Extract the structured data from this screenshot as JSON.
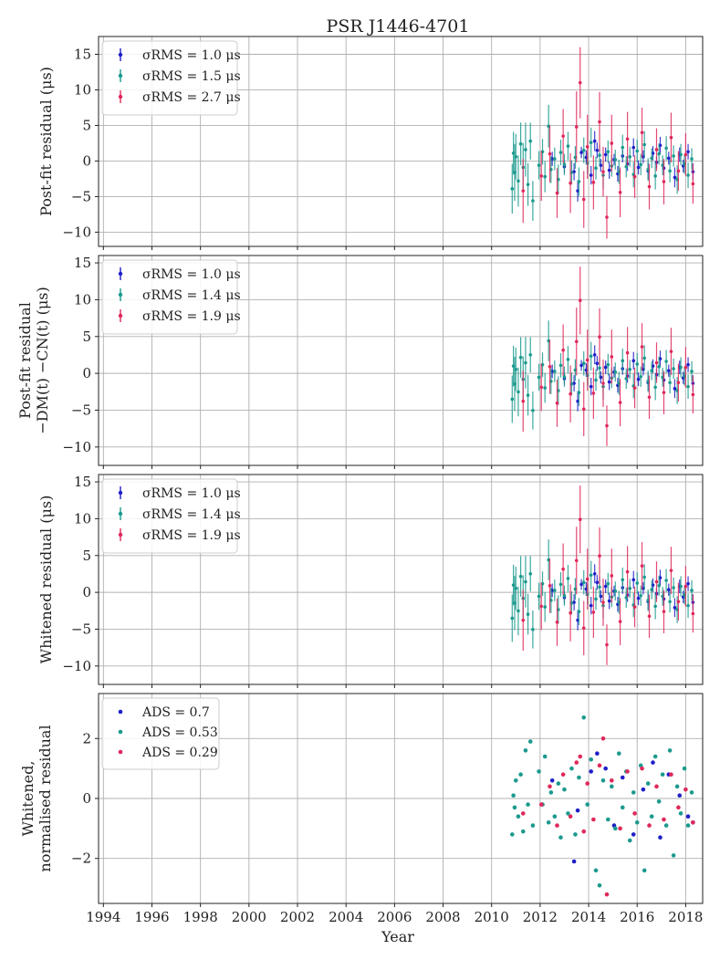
{
  "title": "PSR J1446-4701",
  "colors": {
    "blue": "#1f1fc8",
    "teal": "#1b9a8e",
    "red": "#e0285a"
  },
  "chart_data": [
    {
      "type": "scatter",
      "ylabel": [
        "Post-fit residual (μs)"
      ],
      "xlabel": "",
      "xlim": [
        1993.8,
        2018.7
      ],
      "ylim": [
        -12,
        17.5
      ],
      "yticks": [
        -10,
        -5,
        0,
        5,
        10,
        15
      ],
      "yticklabels": [
        "−10",
        "−5",
        "0",
        "5",
        "10",
        "15"
      ],
      "grid": true,
      "legend_position": "top-left",
      "errorbars": true,
      "series": [
        {
          "name": "σRMS = 1.0 μs",
          "color_key": "blue",
          "marker": "errorbar"
        },
        {
          "name": "σRMS = 1.5 μs",
          "color_key": "teal",
          "marker": "errorbar"
        },
        {
          "name": "σRMS = 2.7 μs",
          "color_key": "red",
          "marker": "errorbar"
        }
      ]
    },
    {
      "type": "scatter",
      "ylabel": [
        "Post-fit residual",
        "−DM(t) −CN(t) (μs)"
      ],
      "xlabel": "",
      "xlim": [
        1993.8,
        2018.7
      ],
      "ylim": [
        -12.5,
        16
      ],
      "yticks": [
        -10,
        -5,
        0,
        5,
        10,
        15
      ],
      "yticklabels": [
        "−10",
        "−5",
        "0",
        "5",
        "10",
        "15"
      ],
      "grid": true,
      "legend_position": "top-left",
      "errorbars": true,
      "series": [
        {
          "name": "σRMS = 1.0 μs",
          "color_key": "blue",
          "marker": "errorbar"
        },
        {
          "name": "σRMS = 1.4 μs",
          "color_key": "teal",
          "marker": "errorbar"
        },
        {
          "name": "σRMS = 1.9 μs",
          "color_key": "red",
          "marker": "errorbar"
        }
      ]
    },
    {
      "type": "scatter",
      "ylabel": [
        "Whitened residual (μs)"
      ],
      "xlabel": "",
      "xlim": [
        1993.8,
        2018.7
      ],
      "ylim": [
        -12.5,
        16
      ],
      "yticks": [
        -10,
        -5,
        0,
        5,
        10,
        15
      ],
      "yticklabels": [
        "−10",
        "−5",
        "0",
        "5",
        "10",
        "15"
      ],
      "grid": true,
      "legend_position": "top-left",
      "errorbars": true,
      "series": [
        {
          "name": "σRMS = 1.0 μs",
          "color_key": "blue",
          "marker": "errorbar"
        },
        {
          "name": "σRMS = 1.4 μs",
          "color_key": "teal",
          "marker": "errorbar"
        },
        {
          "name": "σRMS = 1.9 μs",
          "color_key": "red",
          "marker": "errorbar"
        }
      ]
    },
    {
      "type": "scatter",
      "ylabel": [
        "Whitened,",
        "normalised residual"
      ],
      "xlabel": "Year",
      "xlim": [
        1993.8,
        2018.7
      ],
      "ylim": [
        -3.5,
        3.5
      ],
      "yticks": [
        -2,
        0,
        2
      ],
      "yticklabels": [
        "−2",
        "0",
        "2"
      ],
      "grid": true,
      "legend_position": "top-left",
      "errorbars": false,
      "series": [
        {
          "name": "ADS = 0.7",
          "color_key": "blue",
          "marker": "dot"
        },
        {
          "name": "ADS = 0.53",
          "color_key": "teal",
          "marker": "dot"
        },
        {
          "name": "ADS = 0.29",
          "color_key": "red",
          "marker": "dot"
        }
      ]
    }
  ],
  "x_axis": {
    "ticks": [
      1994,
      1996,
      1998,
      2000,
      2002,
      2004,
      2006,
      2008,
      2010,
      2012,
      2014,
      2016,
      2018
    ],
    "ticklabels": [
      "1994",
      "1996",
      "1998",
      "2000",
      "2002",
      "2004",
      "2006",
      "2008",
      "2010",
      "2012",
      "2014",
      "2016",
      "2018"
    ]
  },
  "observations": {
    "blue": [
      [
        2012.5,
        0.3,
        1.0
      ],
      [
        2013.0,
        -0.8,
        0.9
      ],
      [
        2013.4,
        -1.5,
        1.2
      ],
      [
        2013.55,
        -4.2,
        1.5
      ],
      [
        2013.7,
        1.2,
        0.8
      ],
      [
        2013.9,
        0.5,
        1.0
      ],
      [
        2014.1,
        -2.0,
        1.3
      ],
      [
        2014.25,
        2.8,
        1.4
      ],
      [
        2014.35,
        1.5,
        1.1
      ],
      [
        2014.5,
        -0.6,
        0.9
      ],
      [
        2014.7,
        0.9,
        1.0
      ],
      [
        2014.85,
        -1.3,
        1.2
      ],
      [
        2015.05,
        0.2,
        0.8
      ],
      [
        2015.2,
        -1.8,
        1.1
      ],
      [
        2015.4,
        0.7,
        0.9
      ],
      [
        2015.6,
        -0.4,
        1.0
      ],
      [
        2015.85,
        1.9,
        1.3
      ],
      [
        2016.05,
        -0.9,
        1.0
      ],
      [
        2016.25,
        0.6,
        0.9
      ],
      [
        2016.45,
        -1.4,
        1.2
      ],
      [
        2016.65,
        1.1,
        1.0
      ],
      [
        2016.8,
        -0.2,
        0.8
      ],
      [
        2016.95,
        2.2,
        1.2
      ],
      [
        2017.1,
        -1.0,
        1.0
      ],
      [
        2017.3,
        0.4,
        0.9
      ],
      [
        2017.55,
        -2.3,
        1.4
      ],
      [
        2017.75,
        0.9,
        1.0
      ],
      [
        2017.9,
        -0.7,
        0.9
      ],
      [
        2018.1,
        1.3,
        1.1
      ],
      [
        2018.3,
        -1.5,
        1.2
      ]
    ],
    "teal": [
      [
        2010.85,
        -3.9,
        3.5
      ],
      [
        2010.9,
        1.1,
        3.0
      ],
      [
        2010.95,
        -1.6,
        4.0
      ],
      [
        2011.0,
        0.6,
        3.2
      ],
      [
        2011.1,
        -2.8,
        3.6
      ],
      [
        2011.2,
        2.4,
        3.0
      ],
      [
        2011.3,
        -0.9,
        3.4
      ],
      [
        2011.4,
        1.6,
        3.8
      ],
      [
        2011.5,
        -3.3,
        3.0
      ],
      [
        2011.6,
        2.8,
        2.6
      ],
      [
        2011.7,
        -5.6,
        2.8
      ],
      [
        2011.95,
        -0.6,
        2.0
      ],
      [
        2012.1,
        1.3,
        1.8
      ],
      [
        2012.2,
        -2.2,
        2.2
      ],
      [
        2012.35,
        4.9,
        3.0
      ],
      [
        2012.45,
        -1.2,
        1.9
      ],
      [
        2012.6,
        0.3,
        1.6
      ],
      [
        2012.75,
        -2.6,
        2.1
      ],
      [
        2012.85,
        1.2,
        1.8
      ],
      [
        2013.0,
        -0.5,
        1.5
      ],
      [
        2013.15,
        2.1,
        2.0
      ],
      [
        2013.3,
        -1.6,
        1.7
      ],
      [
        2013.45,
        0.5,
        1.6
      ],
      [
        2013.6,
        -2.9,
        2.0
      ],
      [
        2013.8,
        1.5,
        1.8
      ],
      [
        2013.95,
        -0.3,
        1.5
      ],
      [
        2014.1,
        2.6,
        2.1
      ],
      [
        2014.3,
        -1.0,
        1.6
      ],
      [
        2014.45,
        0.8,
        1.5
      ],
      [
        2014.6,
        -2.0,
        1.9
      ],
      [
        2014.8,
        1.3,
        1.6
      ],
      [
        2014.95,
        -0.7,
        1.5
      ],
      [
        2015.1,
        0.2,
        1.4
      ],
      [
        2015.25,
        -1.5,
        1.7
      ],
      [
        2015.4,
        1.9,
        1.8
      ],
      [
        2015.55,
        -0.8,
        1.5
      ],
      [
        2015.7,
        0.6,
        1.4
      ],
      [
        2015.85,
        -1.9,
        1.8
      ],
      [
        2016.0,
        1.4,
        1.6
      ],
      [
        2016.15,
        -0.5,
        1.5
      ],
      [
        2016.3,
        2.3,
        1.9
      ],
      [
        2016.45,
        -1.2,
        1.6
      ],
      [
        2016.6,
        0.4,
        1.4
      ],
      [
        2016.75,
        -2.1,
        1.9
      ],
      [
        2016.9,
        1.0,
        1.5
      ],
      [
        2017.05,
        -0.6,
        1.4
      ],
      [
        2017.2,
        1.8,
        1.7
      ],
      [
        2017.35,
        -1.4,
        1.6
      ],
      [
        2017.5,
        0.7,
        1.5
      ],
      [
        2017.65,
        -2.6,
        2.0
      ],
      [
        2017.8,
        0.9,
        1.5
      ],
      [
        2017.95,
        -0.4,
        1.4
      ],
      [
        2018.1,
        -2.0,
        1.8
      ],
      [
        2018.25,
        0.3,
        1.5
      ]
    ],
    "red": [
      [
        2011.3,
        -4.2,
        4.5
      ],
      [
        2012.05,
        -2.1,
        3.5
      ],
      [
        2012.4,
        1.0,
        4.0
      ],
      [
        2012.7,
        -4.5,
        3.5
      ],
      [
        2012.95,
        3.5,
        3.8
      ],
      [
        2013.25,
        -3.1,
        4.2
      ],
      [
        2013.5,
        4.8,
        5.0
      ],
      [
        2013.65,
        11.0,
        5.0
      ],
      [
        2013.8,
        -5.4,
        4.0
      ],
      [
        2013.95,
        2.0,
        4.5
      ],
      [
        2014.2,
        -3.0,
        3.8
      ],
      [
        2014.45,
        5.5,
        4.2
      ],
      [
        2014.6,
        -1.5,
        3.5
      ],
      [
        2014.75,
        -7.9,
        3.0
      ],
      [
        2014.95,
        2.5,
        4.0
      ],
      [
        2015.3,
        -4.4,
        3.5
      ],
      [
        2015.6,
        3.1,
        3.8
      ],
      [
        2015.9,
        -2.2,
        3.0
      ],
      [
        2016.2,
        4.0,
        3.5
      ],
      [
        2016.5,
        -3.6,
        3.2
      ],
      [
        2016.8,
        1.6,
        3.0
      ],
      [
        2017.1,
        -2.9,
        3.2
      ],
      [
        2017.4,
        3.3,
        3.5
      ],
      [
        2017.7,
        -1.4,
        2.8
      ],
      [
        2018.0,
        0.9,
        3.0
      ],
      [
        2018.3,
        -3.2,
        2.8
      ]
    ]
  },
  "normalised": {
    "blue": [
      [
        2012.5,
        0.6
      ],
      [
        2013.4,
        -2.1
      ],
      [
        2013.55,
        -0.4
      ],
      [
        2014.1,
        0.9
      ],
      [
        2014.35,
        1.5
      ],
      [
        2014.7,
        1.0
      ],
      [
        2015.05,
        -0.9
      ],
      [
        2015.4,
        0.7
      ],
      [
        2015.85,
        -1.2
      ],
      [
        2016.25,
        0.3
      ],
      [
        2016.65,
        1.2
      ],
      [
        2016.95,
        -1.3
      ],
      [
        2017.3,
        0.8
      ],
      [
        2017.75,
        0.1
      ],
      [
        2018.1,
        -0.6
      ],
      [
        2018.3,
        -0.8
      ]
    ],
    "teal": [
      [
        2010.85,
        -1.2
      ],
      [
        2010.9,
        0.1
      ],
      [
        2010.95,
        -0.3
      ],
      [
        2011.0,
        0.6
      ],
      [
        2011.1,
        -0.6
      ],
      [
        2011.2,
        0.8
      ],
      [
        2011.3,
        -1.1
      ],
      [
        2011.4,
        1.6
      ],
      [
        2011.5,
        -0.2
      ],
      [
        2011.6,
        1.9
      ],
      [
        2011.7,
        -0.9
      ],
      [
        2011.95,
        0.9
      ],
      [
        2012.1,
        -0.2
      ],
      [
        2012.2,
        1.4
      ],
      [
        2012.35,
        -0.8
      ],
      [
        2012.45,
        0.2
      ],
      [
        2012.6,
        -0.6
      ],
      [
        2012.75,
        0.5
      ],
      [
        2012.85,
        -1.3
      ],
      [
        2013.0,
        0.3
      ],
      [
        2013.15,
        -0.5
      ],
      [
        2013.3,
        1.0
      ],
      [
        2013.45,
        -1.2
      ],
      [
        2013.6,
        0.7
      ],
      [
        2013.8,
        2.7
      ],
      [
        2013.95,
        -0.2
      ],
      [
        2014.1,
        1.3
      ],
      [
        2014.3,
        -2.4
      ],
      [
        2014.45,
        -2.9
      ],
      [
        2014.6,
        0.6
      ],
      [
        2014.8,
        -0.7
      ],
      [
        2014.95,
        0.4
      ],
      [
        2015.1,
        -1.0
      ],
      [
        2015.25,
        1.5
      ],
      [
        2015.4,
        -0.3
      ],
      [
        2015.55,
        0.9
      ],
      [
        2015.7,
        -1.4
      ],
      [
        2015.85,
        0.2
      ],
      [
        2016.0,
        -0.8
      ],
      [
        2016.15,
        1.1
      ],
      [
        2016.3,
        -2.4
      ],
      [
        2016.45,
        0.5
      ],
      [
        2016.6,
        -0.6
      ],
      [
        2016.75,
        1.4
      ],
      [
        2016.9,
        -0.1
      ],
      [
        2017.05,
        0.8
      ],
      [
        2017.2,
        -0.9
      ],
      [
        2017.35,
        1.6
      ],
      [
        2017.5,
        -1.9
      ],
      [
        2017.65,
        0.4
      ],
      [
        2017.8,
        -0.5
      ],
      [
        2017.95,
        1.0
      ],
      [
        2018.1,
        -0.9
      ],
      [
        2018.25,
        0.2
      ]
    ],
    "red": [
      [
        2011.3,
        -0.5
      ],
      [
        2012.05,
        -0.2
      ],
      [
        2012.4,
        0.4
      ],
      [
        2012.7,
        -0.9
      ],
      [
        2012.95,
        0.8
      ],
      [
        2013.25,
        -0.6
      ],
      [
        2013.5,
        1.2
      ],
      [
        2013.65,
        1.4
      ],
      [
        2013.8,
        -1.1
      ],
      [
        2013.95,
        0.5
      ],
      [
        2014.2,
        -0.7
      ],
      [
        2014.45,
        1.1
      ],
      [
        2014.6,
        2.0
      ],
      [
        2014.75,
        -3.2
      ],
      [
        2014.95,
        0.6
      ],
      [
        2015.3,
        -1.0
      ],
      [
        2015.6,
        0.9
      ],
      [
        2015.9,
        -0.5
      ],
      [
        2016.2,
        1.0
      ],
      [
        2016.5,
        -0.9
      ],
      [
        2016.8,
        0.4
      ],
      [
        2017.1,
        -0.7
      ],
      [
        2017.4,
        0.8
      ],
      [
        2017.7,
        -0.3
      ],
      [
        2018.0,
        0.3
      ],
      [
        2018.3,
        -0.8
      ]
    ]
  }
}
